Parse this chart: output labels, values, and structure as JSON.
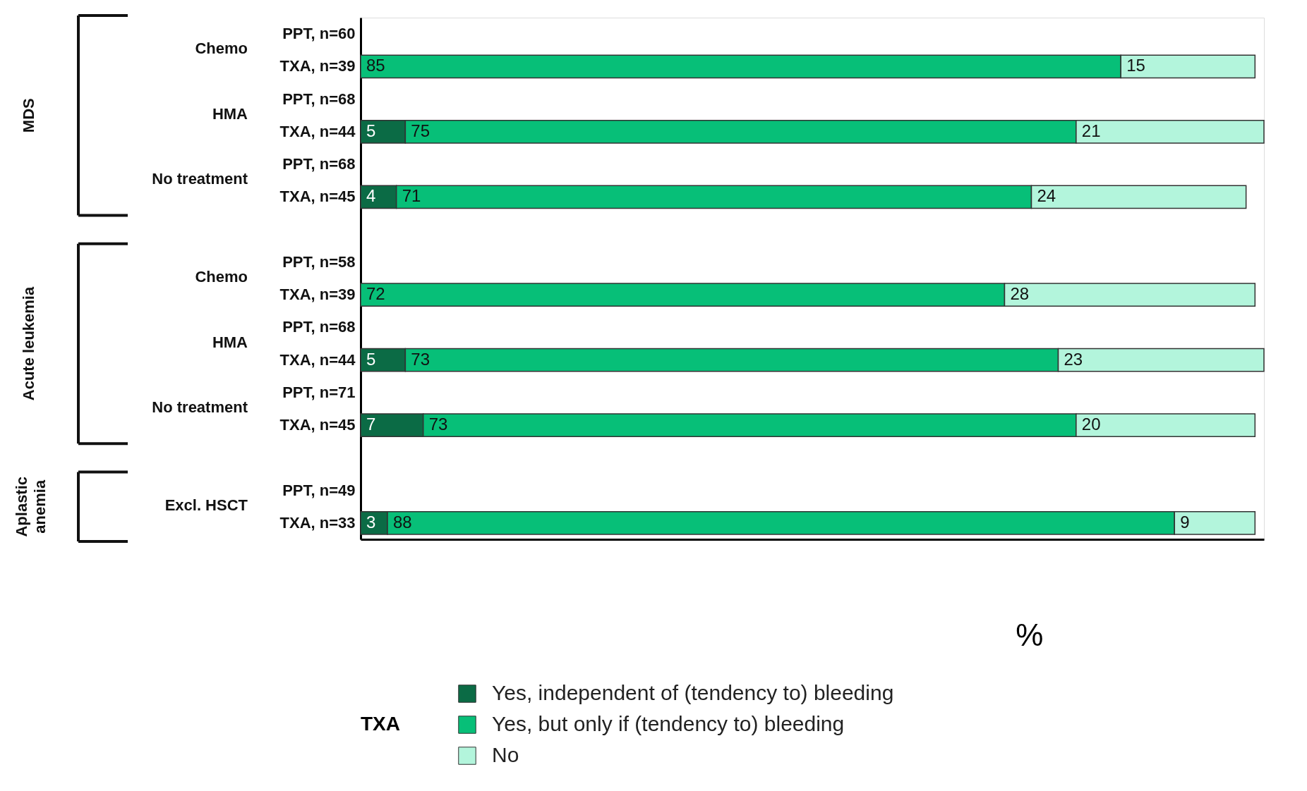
{
  "chart_data": {
    "type": "bar",
    "orientation": "horizontal",
    "stacked": true,
    "data_labels": true,
    "legend": "bottom",
    "tick_labels": "y",
    "grid": false,
    "legend_title": "TXA",
    "xlabel": "%",
    "xlim": [
      0,
      101
    ],
    "categories": [
      "PPT, n=60",
      "TXA, n=39",
      "PPT, n=68",
      "TXA, n=44",
      "PPT, n=68",
      "TXA, n=45",
      null,
      "PPT, n=58",
      "TXA, n=39",
      "PPT, n=68",
      "TXA, n=44",
      "PPT, n=71",
      "TXA, n=45",
      null,
      "PPT, n=49",
      "TXA, n=33"
    ],
    "series": [
      {
        "name": "Yes, independent of (tendency to) bleeding",
        "color": "#0b6b45",
        "values": [
          null,
          null,
          null,
          5,
          null,
          4,
          null,
          null,
          null,
          null,
          5,
          null,
          7,
          null,
          null,
          3
        ]
      },
      {
        "name": "Yes, but only if (tendency to) bleeding",
        "color": "#07bf78",
        "values": [
          null,
          85,
          null,
          75,
          null,
          71,
          null,
          null,
          72,
          null,
          73,
          null,
          73,
          null,
          null,
          88
        ]
      },
      {
        "name": "No",
        "color": "#b3f5dc",
        "values": [
          null,
          15,
          null,
          21,
          null,
          24,
          null,
          null,
          28,
          null,
          23,
          null,
          20,
          null,
          null,
          9
        ]
      }
    ],
    "annotations": [
      "Chemo",
      "HMA",
      "No treatment",
      "MDS",
      "Chemo",
      "HMA",
      "No treatment",
      "Acute leukemia",
      "Excl. HSCT",
      "Aplastic anemia"
    ]
  }
}
